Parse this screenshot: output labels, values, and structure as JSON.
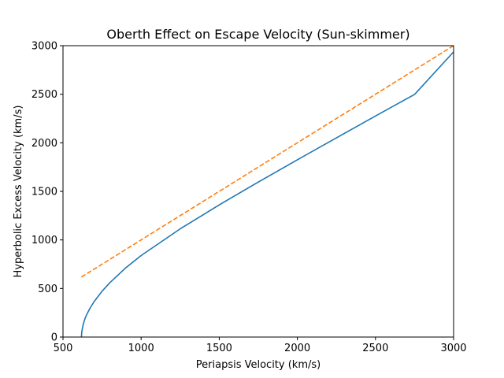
{
  "chart_data": {
    "type": "line",
    "title": "Oberth Effect on Escape Velocity (Sun-skimmer)",
    "xlabel": "Periapsis Velocity (km/s)",
    "ylabel": "Hyperbolic Excess Velocity (km/s)",
    "xlim": [
      500,
      3000
    ],
    "ylim": [
      0,
      3000
    ],
    "xticks": [
      500,
      1000,
      1500,
      2000,
      2500,
      3000
    ],
    "yticks": [
      0,
      500,
      1000,
      1500,
      2000,
      2500,
      3000
    ],
    "grid": false,
    "legend": "none",
    "series": [
      {
        "color": "#1f77b4",
        "linestyle": "solid",
        "x": [
          618,
          620,
          625,
          630,
          640,
          650,
          675,
          700,
          750,
          800,
          900,
          1000,
          1250,
          1500,
          1750,
          2000,
          2250,
          2500,
          2750,
          3000
        ],
        "y": [
          0,
          50,
          97,
          135,
          186,
          226,
          303,
          367,
          472,
          560,
          710,
          839,
          1114,
          1361,
          1596,
          1825,
          2051,
          2276,
          2498,
          2936
        ]
      },
      {
        "color": "#ff7f0e",
        "linestyle": "dashed",
        "x": [
          618,
          3000
        ],
        "y": [
          618,
          3000
        ]
      }
    ]
  }
}
